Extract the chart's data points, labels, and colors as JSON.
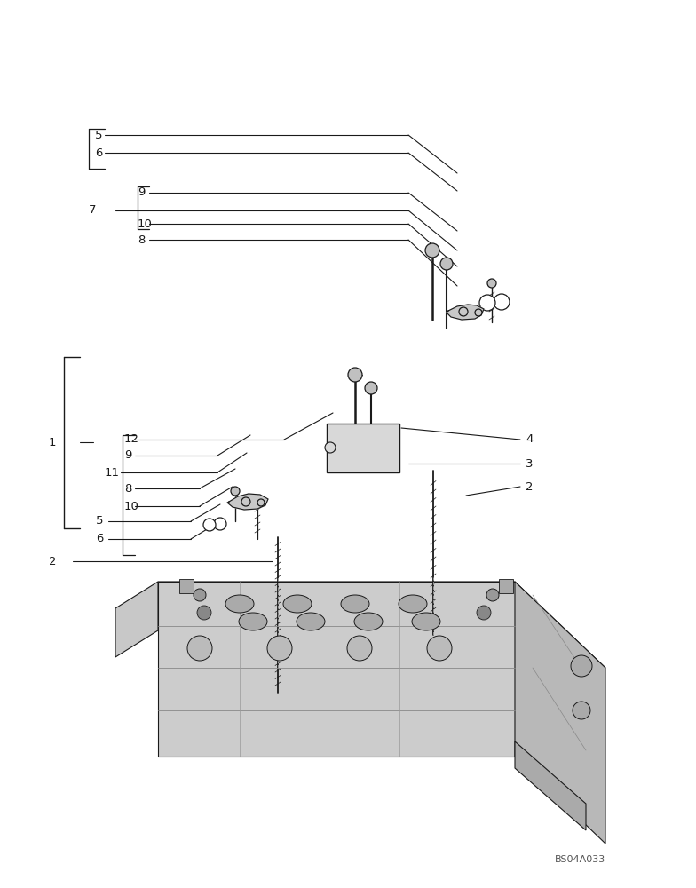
{
  "bg_color": "#ffffff",
  "line_color": "#1a1a1a",
  "text_color": "#1a1a1a",
  "watermark": "BS04A033",
  "fig_width": 7.84,
  "fig_height": 10.0
}
